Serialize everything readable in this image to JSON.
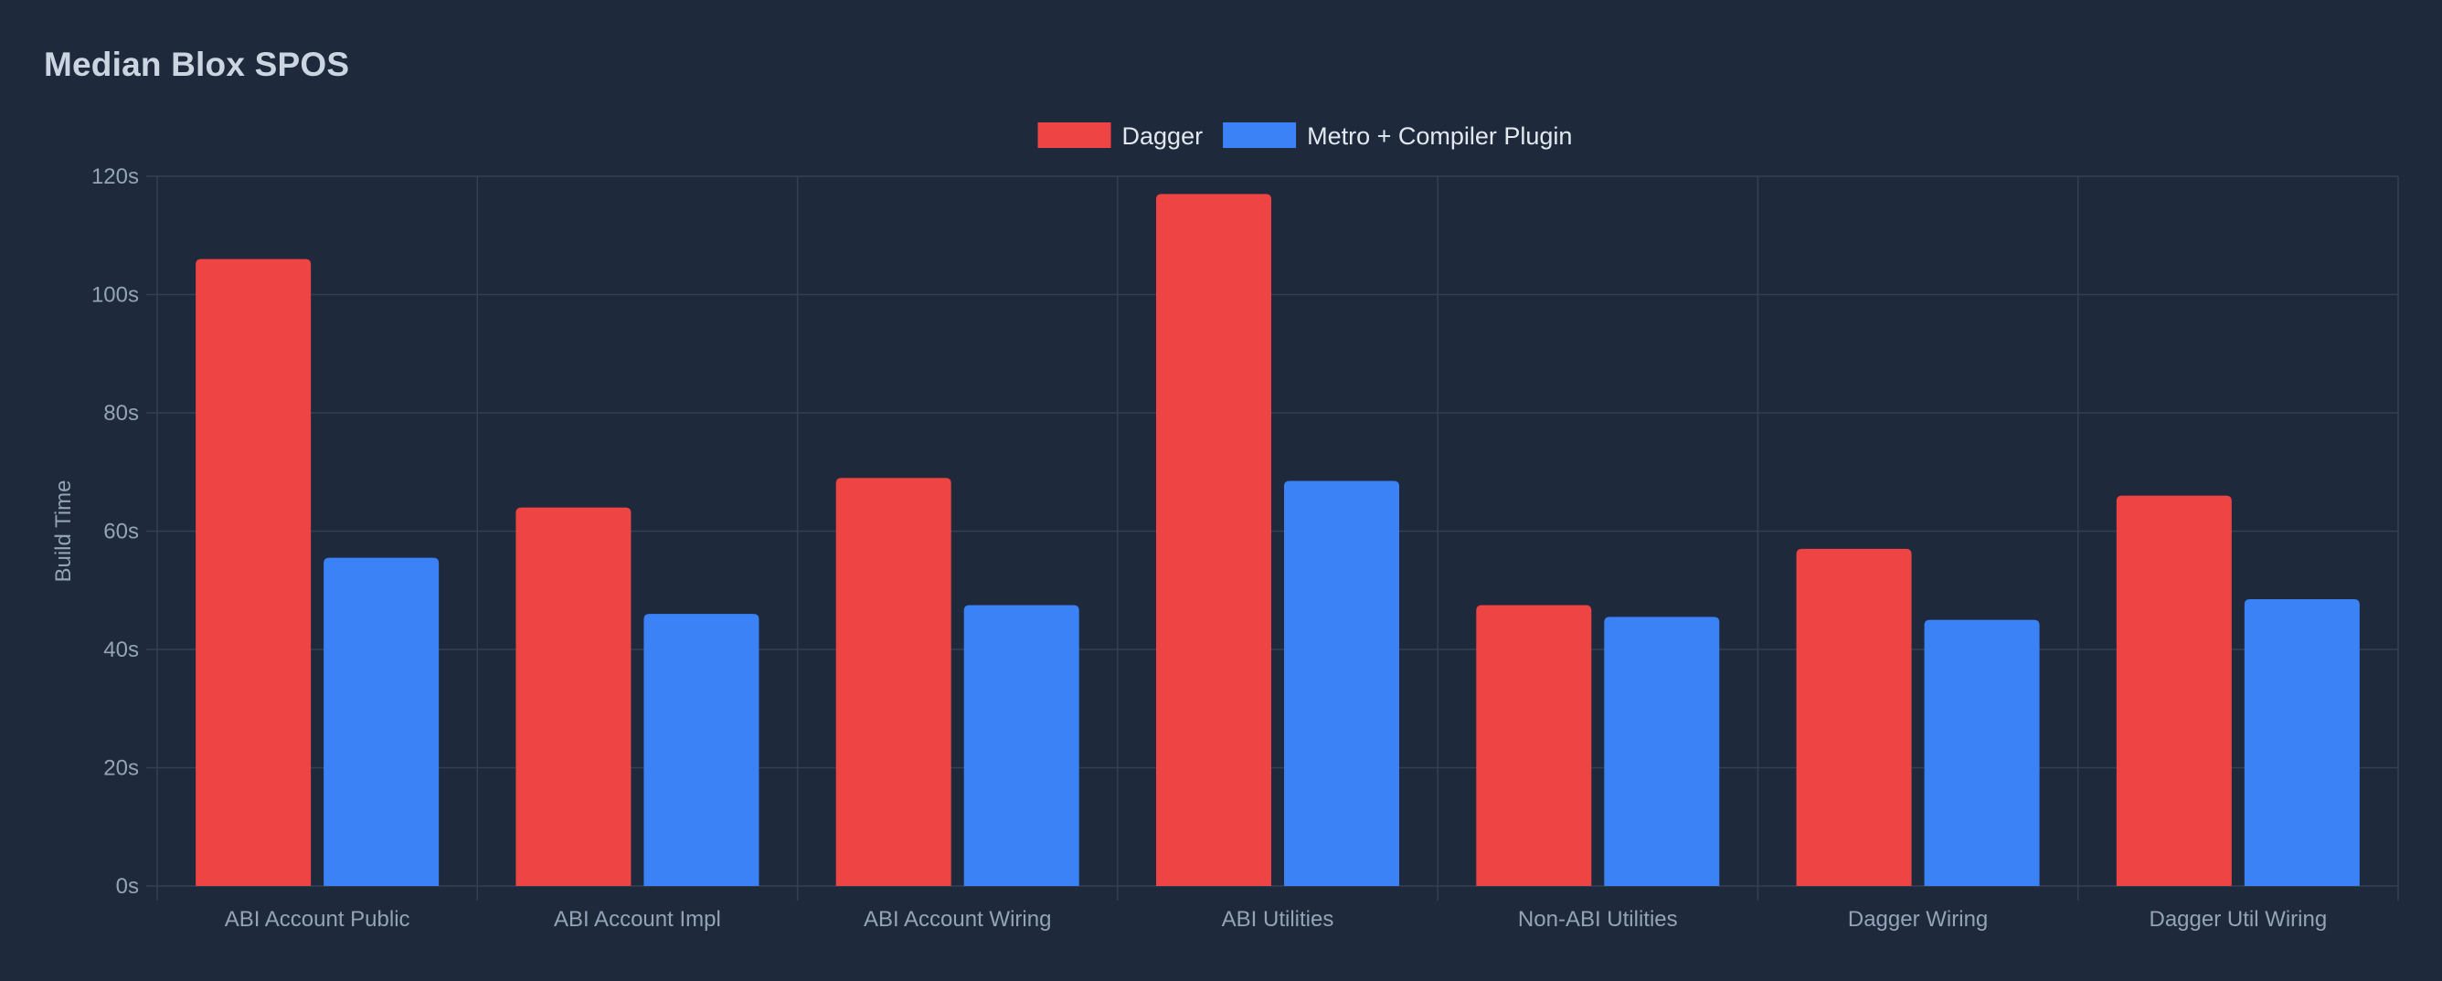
{
  "chart_data": {
    "type": "bar",
    "title": "Median Blox SPOS",
    "ylabel": "Build Time",
    "xlabel": "",
    "y_unit_suffix": "s",
    "ylim": [
      0,
      120
    ],
    "y_ticks": [
      0,
      20,
      40,
      60,
      80,
      100,
      120
    ],
    "grid": true,
    "legend_position": "top-center",
    "categories": [
      "ABI Account Public",
      "ABI Account Impl",
      "ABI Account Wiring",
      "ABI Utilities",
      "Non-ABI Utilities",
      "Dagger Wiring",
      "Dagger Util Wiring"
    ],
    "series": [
      {
        "name": "Dagger",
        "color": "#ef4444",
        "values": [
          106,
          64,
          69,
          117,
          47.5,
          57,
          66
        ]
      },
      {
        "name": "Metro + Compiler Plugin",
        "color": "#3b82f6",
        "values": [
          55.5,
          46,
          47.5,
          68.5,
          45.5,
          45,
          48.5
        ]
      }
    ]
  }
}
